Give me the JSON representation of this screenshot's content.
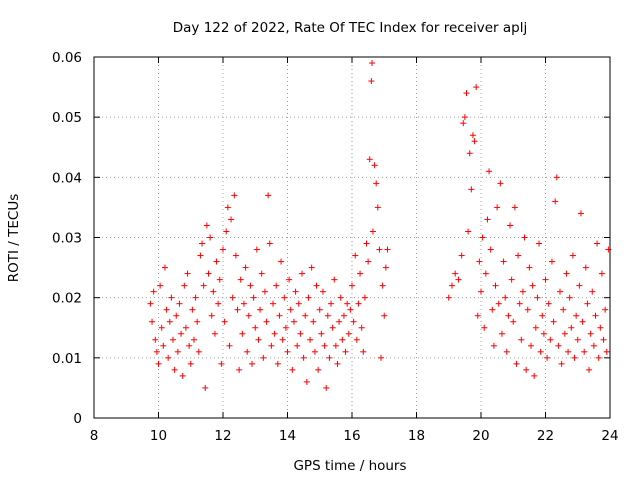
{
  "chart_data": {
    "type": "scatter",
    "title": "Day 122 of 2022, Rate Of TEC Index for receiver aplj",
    "xlabel": "GPS time / hours",
    "ylabel": "ROTI / TECUs",
    "xlim": [
      8,
      24
    ],
    "ylim": [
      0,
      0.06
    ],
    "x_ticks": [
      8,
      10,
      12,
      14,
      16,
      18,
      20,
      22,
      24
    ],
    "y_ticks": [
      0,
      0.01,
      0.02,
      0.03,
      0.04,
      0.05,
      0.06
    ],
    "x_tick_labels": [
      "8",
      "10",
      "12",
      "14",
      "16",
      "18",
      "20",
      "22",
      "24"
    ],
    "y_tick_labels": [
      "0",
      "0.01",
      "0.02",
      "0.03",
      "0.04",
      "0.05",
      "0.06"
    ],
    "grid": true,
    "marker": "+",
    "color": "#ff0000",
    "series": [
      {
        "points": [
          [
            9.75,
            0.019
          ],
          [
            9.8,
            0.016
          ],
          [
            9.85,
            0.021
          ],
          [
            9.9,
            0.013
          ],
          [
            9.95,
            0.011
          ],
          [
            10.0,
            0.009
          ],
          [
            10.05,
            0.022
          ],
          [
            10.1,
            0.015
          ],
          [
            10.15,
            0.012
          ],
          [
            10.2,
            0.025
          ],
          [
            10.25,
            0.018
          ],
          [
            10.3,
            0.01
          ],
          [
            10.35,
            0.016
          ],
          [
            10.4,
            0.02
          ],
          [
            10.45,
            0.013
          ],
          [
            10.5,
            0.008
          ],
          [
            10.55,
            0.017
          ],
          [
            10.6,
            0.011
          ],
          [
            10.65,
            0.019
          ],
          [
            10.7,
            0.014
          ],
          [
            10.75,
            0.007
          ],
          [
            10.8,
            0.022
          ],
          [
            10.85,
            0.015
          ],
          [
            10.9,
            0.024
          ],
          [
            10.95,
            0.012
          ],
          [
            11.0,
            0.009
          ],
          [
            11.05,
            0.018
          ],
          [
            11.1,
            0.013
          ],
          [
            11.15,
            0.02
          ],
          [
            11.2,
            0.016
          ],
          [
            11.25,
            0.011
          ],
          [
            11.3,
            0.027
          ],
          [
            11.35,
            0.029
          ],
          [
            11.4,
            0.022
          ],
          [
            11.45,
            0.005
          ],
          [
            11.5,
            0.032
          ],
          [
            11.55,
            0.024
          ],
          [
            11.6,
            0.03
          ],
          [
            11.65,
            0.017
          ],
          [
            11.7,
            0.021
          ],
          [
            11.75,
            0.014
          ],
          [
            11.8,
            0.026
          ],
          [
            11.85,
            0.019
          ],
          [
            11.9,
            0.023
          ],
          [
            11.95,
            0.009
          ],
          [
            12.0,
            0.028
          ],
          [
            12.05,
            0.016
          ],
          [
            12.1,
            0.031
          ],
          [
            12.15,
            0.035
          ],
          [
            12.2,
            0.012
          ],
          [
            12.25,
            0.033
          ],
          [
            12.3,
            0.02
          ],
          [
            12.35,
            0.037
          ],
          [
            12.4,
            0.027
          ],
          [
            12.45,
            0.018
          ],
          [
            12.5,
            0.008
          ],
          [
            12.55,
            0.023
          ],
          [
            12.6,
            0.014
          ],
          [
            12.65,
            0.019
          ],
          [
            12.7,
            0.025
          ],
          [
            12.75,
            0.011
          ],
          [
            12.8,
            0.017
          ],
          [
            12.85,
            0.022
          ],
          [
            12.9,
            0.009
          ],
          [
            12.95,
            0.02
          ],
          [
            13.0,
            0.015
          ],
          [
            13.05,
            0.028
          ],
          [
            13.1,
            0.013
          ],
          [
            13.15,
            0.018
          ],
          [
            13.2,
            0.024
          ],
          [
            13.25,
            0.01
          ],
          [
            13.3,
            0.021
          ],
          [
            13.35,
            0.016
          ],
          [
            13.4,
            0.037
          ],
          [
            13.45,
            0.029
          ],
          [
            13.5,
            0.012
          ],
          [
            13.55,
            0.019
          ],
          [
            13.6,
            0.014
          ],
          [
            13.65,
            0.022
          ],
          [
            13.7,
            0.009
          ],
          [
            13.75,
            0.017
          ],
          [
            13.8,
            0.026
          ],
          [
            13.85,
            0.013
          ],
          [
            13.9,
            0.02
          ],
          [
            13.95,
            0.015
          ],
          [
            14.0,
            0.011
          ],
          [
            14.05,
            0.023
          ],
          [
            14.1,
            0.018
          ],
          [
            14.15,
            0.008
          ],
          [
            14.2,
            0.016
          ],
          [
            14.25,
            0.021
          ],
          [
            14.3,
            0.012
          ],
          [
            14.35,
            0.019
          ],
          [
            14.4,
            0.014
          ],
          [
            14.45,
            0.024
          ],
          [
            14.5,
            0.01
          ],
          [
            14.55,
            0.017
          ],
          [
            14.6,
            0.006
          ],
          [
            14.65,
            0.02
          ],
          [
            14.7,
            0.013
          ],
          [
            14.75,
            0.025
          ],
          [
            14.8,
            0.016
          ],
          [
            14.85,
            0.011
          ],
          [
            14.9,
            0.022
          ],
          [
            14.95,
            0.008
          ],
          [
            15.0,
            0.018
          ],
          [
            15.05,
            0.014
          ],
          [
            15.1,
            0.021
          ],
          [
            15.15,
            0.012
          ],
          [
            15.2,
            0.005
          ],
          [
            15.25,
            0.017
          ],
          [
            15.3,
            0.01
          ],
          [
            15.35,
            0.019
          ],
          [
            15.4,
            0.015
          ],
          [
            15.45,
            0.023
          ],
          [
            15.5,
            0.012
          ],
          [
            15.55,
            0.009
          ],
          [
            15.6,
            0.016
          ],
          [
            15.65,
            0.02
          ],
          [
            15.7,
            0.013
          ],
          [
            15.75,
            0.017
          ],
          [
            15.8,
            0.011
          ],
          [
            15.85,
            0.019
          ],
          [
            15.9,
            0.014
          ],
          [
            15.95,
            0.018
          ],
          [
            16.0,
            0.022
          ],
          [
            16.05,
            0.016
          ],
          [
            16.1,
            0.027
          ],
          [
            16.15,
            0.013
          ],
          [
            16.2,
            0.019
          ],
          [
            16.25,
            0.024
          ],
          [
            16.3,
            0.015
          ],
          [
            16.35,
            0.011
          ],
          [
            16.4,
            0.02
          ],
          [
            16.45,
            0.029
          ],
          [
            16.5,
            0.026
          ],
          [
            16.55,
            0.043
          ],
          [
            16.6,
            0.056
          ],
          [
            16.62,
            0.059
          ],
          [
            16.65,
            0.031
          ],
          [
            16.7,
            0.042
          ],
          [
            16.75,
            0.039
          ],
          [
            16.8,
            0.035
          ],
          [
            16.85,
            0.028
          ],
          [
            16.9,
            0.01
          ],
          [
            16.95,
            0.022
          ],
          [
            17.0,
            0.017
          ],
          [
            17.05,
            0.025
          ],
          [
            17.1,
            0.028
          ],
          [
            19.0,
            0.02
          ],
          [
            19.1,
            0.022
          ],
          [
            19.2,
            0.024
          ],
          [
            19.3,
            0.023
          ],
          [
            19.4,
            0.027
          ],
          [
            19.45,
            0.049
          ],
          [
            19.5,
            0.05
          ],
          [
            19.55,
            0.054
          ],
          [
            19.6,
            0.031
          ],
          [
            19.65,
            0.044
          ],
          [
            19.7,
            0.038
          ],
          [
            19.75,
            0.047
          ],
          [
            19.8,
            0.046
          ],
          [
            19.85,
            0.055
          ],
          [
            19.9,
            0.017
          ],
          [
            19.95,
            0.026
          ],
          [
            20.0,
            0.021
          ],
          [
            20.05,
            0.03
          ],
          [
            20.1,
            0.015
          ],
          [
            20.15,
            0.024
          ],
          [
            20.2,
            0.033
          ],
          [
            20.25,
            0.041
          ],
          [
            20.3,
            0.028
          ],
          [
            20.35,
            0.018
          ],
          [
            20.4,
            0.012
          ],
          [
            20.45,
            0.022
          ],
          [
            20.5,
            0.035
          ],
          [
            20.55,
            0.019
          ],
          [
            20.6,
            0.039
          ],
          [
            20.65,
            0.014
          ],
          [
            20.7,
            0.026
          ],
          [
            20.75,
            0.02
          ],
          [
            20.8,
            0.011
          ],
          [
            20.85,
            0.017
          ],
          [
            20.9,
            0.032
          ],
          [
            20.95,
            0.023
          ],
          [
            21.0,
            0.016
          ],
          [
            21.05,
            0.035
          ],
          [
            21.1,
            0.009
          ],
          [
            21.15,
            0.027
          ],
          [
            21.2,
            0.019
          ],
          [
            21.25,
            0.013
          ],
          [
            21.3,
            0.021
          ],
          [
            21.35,
            0.03
          ],
          [
            21.4,
            0.008
          ],
          [
            21.45,
            0.018
          ],
          [
            21.5,
            0.025
          ],
          [
            21.55,
            0.012
          ],
          [
            21.6,
            0.022
          ],
          [
            21.65,
            0.007
          ],
          [
            21.7,
            0.015
          ],
          [
            21.75,
            0.02
          ],
          [
            21.8,
            0.029
          ],
          [
            21.85,
            0.011
          ],
          [
            21.9,
            0.017
          ],
          [
            21.95,
            0.014
          ],
          [
            22.0,
            0.023
          ],
          [
            22.05,
            0.01
          ],
          [
            22.1,
            0.019
          ],
          [
            22.15,
            0.013
          ],
          [
            22.2,
            0.026
          ],
          [
            22.25,
            0.016
          ],
          [
            22.3,
            0.036
          ],
          [
            22.35,
            0.04
          ],
          [
            22.4,
            0.012
          ],
          [
            22.45,
            0.021
          ],
          [
            22.5,
            0.009
          ],
          [
            22.55,
            0.018
          ],
          [
            22.6,
            0.014
          ],
          [
            22.65,
            0.024
          ],
          [
            22.7,
            0.011
          ],
          [
            22.75,
            0.02
          ],
          [
            22.8,
            0.015
          ],
          [
            22.85,
            0.027
          ],
          [
            22.9,
            0.01
          ],
          [
            22.95,
            0.017
          ],
          [
            23.0,
            0.013
          ],
          [
            23.05,
            0.022
          ],
          [
            23.1,
            0.034
          ],
          [
            23.15,
            0.016
          ],
          [
            23.2,
            0.011
          ],
          [
            23.25,
            0.025
          ],
          [
            23.3,
            0.019
          ],
          [
            23.35,
            0.008
          ],
          [
            23.4,
            0.014
          ],
          [
            23.45,
            0.021
          ],
          [
            23.5,
            0.012
          ],
          [
            23.55,
            0.017
          ],
          [
            23.6,
            0.029
          ],
          [
            23.65,
            0.01
          ],
          [
            23.7,
            0.015
          ],
          [
            23.75,
            0.024
          ],
          [
            23.8,
            0.013
          ],
          [
            23.85,
            0.018
          ],
          [
            23.9,
            0.011
          ],
          [
            23.95,
            0.028
          ]
        ]
      }
    ]
  }
}
